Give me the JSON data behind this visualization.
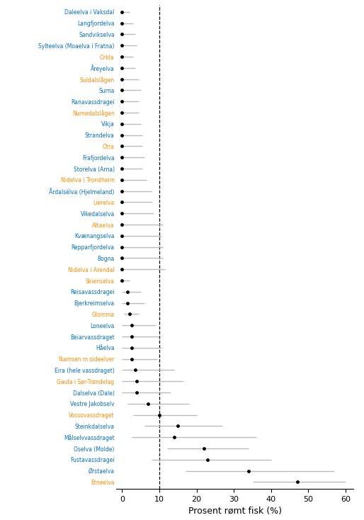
{
  "rivers": [
    {
      "name": "Daleelva i Vaksdal",
      "value": 0.0,
      "ci_low": 0.0,
      "ci_high": 2.0,
      "color": "#0070C0"
    },
    {
      "name": "Langfjordelva",
      "value": 0.0,
      "ci_low": 0.0,
      "ci_high": 3.0,
      "color": "#0070C0"
    },
    {
      "name": "Sandvikselva",
      "value": 0.0,
      "ci_low": 0.0,
      "ci_high": 3.5,
      "color": "#0070C0"
    },
    {
      "name": "Sylteelva (Moaelva i Fratna)",
      "value": 0.0,
      "ci_low": 0.0,
      "ci_high": 4.0,
      "color": "#0070C0"
    },
    {
      "name": "Orkla",
      "value": 0.0,
      "ci_low": 0.0,
      "ci_high": 3.0,
      "color": "#FF8C00"
    },
    {
      "name": "Åreyelva",
      "value": 0.0,
      "ci_low": 0.0,
      "ci_high": 3.5,
      "color": "#0070C0"
    },
    {
      "name": "Suldalslågen",
      "value": 0.0,
      "ci_low": 0.0,
      "ci_high": 4.5,
      "color": "#FF8C00"
    },
    {
      "name": "Surna",
      "value": 0.0,
      "ci_low": 0.0,
      "ci_high": 5.0,
      "color": "#0070C0"
    },
    {
      "name": "Ranavassdragei",
      "value": 0.0,
      "ci_low": 0.0,
      "ci_high": 4.5,
      "color": "#0070C0"
    },
    {
      "name": "Numedalslågen",
      "value": 0.0,
      "ci_low": 0.0,
      "ci_high": 4.5,
      "color": "#FF8C00"
    },
    {
      "name": "Vikja",
      "value": 0.0,
      "ci_low": 0.0,
      "ci_high": 5.0,
      "color": "#0070C0"
    },
    {
      "name": "Strandelva",
      "value": 0.0,
      "ci_low": 0.0,
      "ci_high": 5.5,
      "color": "#0070C0"
    },
    {
      "name": "Otra",
      "value": 0.0,
      "ci_low": 0.0,
      "ci_high": 5.5,
      "color": "#FF8C00"
    },
    {
      "name": "Frafjordelva",
      "value": 0.0,
      "ci_low": 0.0,
      "ci_high": 6.0,
      "color": "#0070C0"
    },
    {
      "name": "Storelva (Arna)",
      "value": 0.0,
      "ci_low": 0.0,
      "ci_high": 5.5,
      "color": "#0070C0"
    },
    {
      "name": "Nidelva i Trondheim",
      "value": 0.0,
      "ci_low": 0.0,
      "ci_high": 6.5,
      "color": "#FF8C00"
    },
    {
      "name": "Årdalsélva (Hjelmeland)",
      "value": 0.0,
      "ci_low": 0.0,
      "ci_high": 8.0,
      "color": "#0070C0"
    },
    {
      "name": "Lierelva",
      "value": 0.0,
      "ci_low": 0.0,
      "ci_high": 8.0,
      "color": "#FF8C00"
    },
    {
      "name": "Vikedalselva",
      "value": 0.0,
      "ci_low": 0.0,
      "ci_high": 8.5,
      "color": "#0070C0"
    },
    {
      "name": "Altaelva",
      "value": 0.0,
      "ci_low": 0.0,
      "ci_high": 11.0,
      "color": "#FF8C00"
    },
    {
      "name": "Kvænangselva",
      "value": 0.0,
      "ci_low": 0.0,
      "ci_high": 10.5,
      "color": "#0070C0"
    },
    {
      "name": "Repparfjordelva",
      "value": 0.0,
      "ci_low": 0.0,
      "ci_high": 11.0,
      "color": "#0070C0"
    },
    {
      "name": "Bogna",
      "value": 0.0,
      "ci_low": 0.0,
      "ci_high": 11.0,
      "color": "#0070C0"
    },
    {
      "name": "Nidelva i Arendal",
      "value": 0.0,
      "ci_low": 0.0,
      "ci_high": 11.5,
      "color": "#FF8C00"
    },
    {
      "name": "Skienselva",
      "value": 0.0,
      "ci_low": 0.0,
      "ci_high": 2.0,
      "color": "#FF8C00"
    },
    {
      "name": "Reisavassdragei",
      "value": 1.5,
      "ci_low": 0.0,
      "ci_high": 5.0,
      "color": "#0070C0"
    },
    {
      "name": "Bjerkreimselva",
      "value": 1.5,
      "ci_low": 0.0,
      "ci_high": 6.0,
      "color": "#0070C0"
    },
    {
      "name": "Glomma",
      "value": 2.0,
      "ci_low": 0.5,
      "ci_high": 4.5,
      "color": "#FF8C00"
    },
    {
      "name": "Loneelva",
      "value": 2.5,
      "ci_low": 0.0,
      "ci_high": 9.0,
      "color": "#0070C0"
    },
    {
      "name": "Beiarvassdraget",
      "value": 2.5,
      "ci_low": 0.0,
      "ci_high": 10.0,
      "color": "#0070C0"
    },
    {
      "name": "Håelva",
      "value": 2.5,
      "ci_low": 0.0,
      "ci_high": 10.5,
      "color": "#0070C0"
    },
    {
      "name": "Namsen m sideelver",
      "value": 2.5,
      "ci_low": 0.0,
      "ci_high": 9.5,
      "color": "#FF8C00"
    },
    {
      "name": "Eira (hele vassdraget)",
      "value": 3.5,
      "ci_low": 0.0,
      "ci_high": 14.0,
      "color": "#0070C0"
    },
    {
      "name": "Gaula i Sør-Trøndelag",
      "value": 4.0,
      "ci_low": 0.0,
      "ci_high": 16.5,
      "color": "#FF8C00"
    },
    {
      "name": "Dalselva (Dale)",
      "value": 4.0,
      "ci_low": 0.0,
      "ci_high": 13.0,
      "color": "#0070C0"
    },
    {
      "name": "Vestre Jakobselv",
      "value": 7.0,
      "ci_low": 1.5,
      "ci_high": 18.0,
      "color": "#0070C0"
    },
    {
      "name": "Vossovassdraget",
      "value": 10.0,
      "ci_low": 3.0,
      "ci_high": 20.0,
      "color": "#FF8C00"
    },
    {
      "name": "Steinkdalselva",
      "value": 15.0,
      "ci_low": 6.0,
      "ci_high": 27.0,
      "color": "#0070C0"
    },
    {
      "name": "Målselvvassdraget",
      "value": 14.0,
      "ci_low": 2.5,
      "ci_high": 36.0,
      "color": "#0070C0"
    },
    {
      "name": "Oselva (Molde)",
      "value": 22.0,
      "ci_low": 12.0,
      "ci_high": 34.0,
      "color": "#0070C0"
    },
    {
      "name": "Fustavassdragei",
      "value": 23.0,
      "ci_low": 8.0,
      "ci_high": 40.0,
      "color": "#0070C0"
    },
    {
      "name": "Ørstaelva",
      "value": 34.0,
      "ci_low": 17.0,
      "ci_high": 57.0,
      "color": "#0070C0"
    },
    {
      "name": "Etneelva",
      "value": 47.0,
      "ci_low": 35.0,
      "ci_high": 60.0,
      "color": "#FF8C00"
    }
  ],
  "vline_x": 10,
  "xlabel": "Prosent rømt fisk (%)",
  "xlim": [
    -1.5,
    62
  ],
  "xticks": [
    0,
    10,
    20,
    30,
    40,
    50,
    60
  ],
  "dot_color": "black",
  "ci_color": "#BBBBBB",
  "dashed_color": "black",
  "bg_color": "white",
  "label_fontsize": 5.5,
  "xlabel_fontsize": 9.0
}
